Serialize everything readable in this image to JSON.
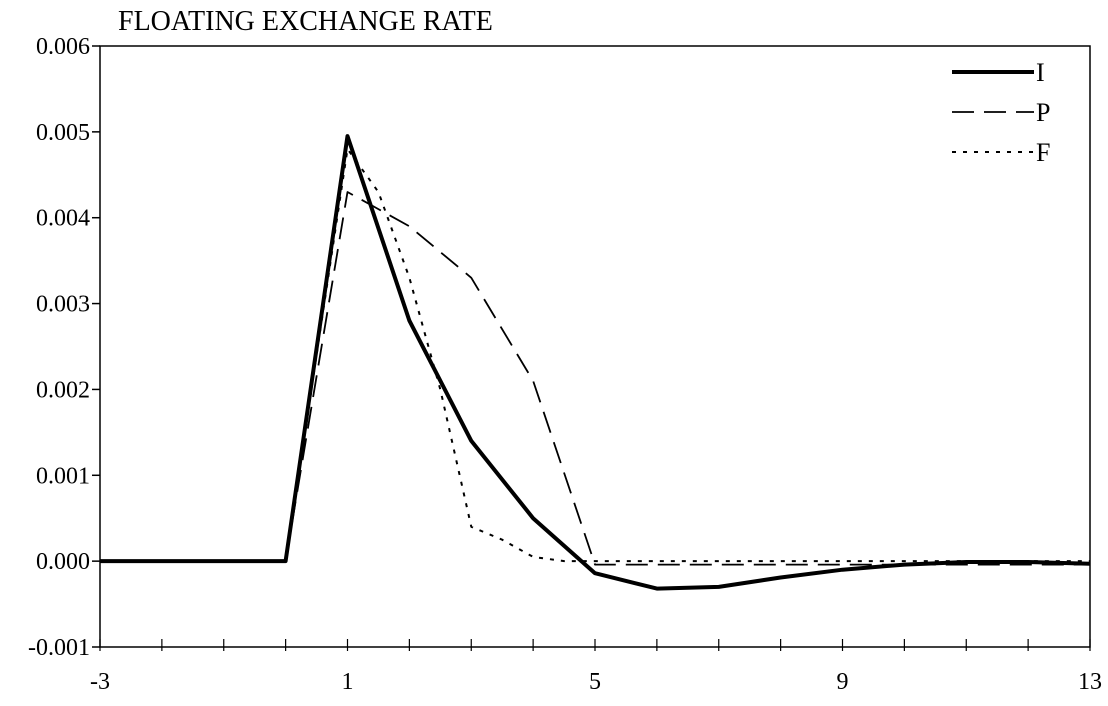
{
  "chart_data": {
    "type": "line",
    "title": "FLOATING EXCHANGE RATE",
    "xlabel": "",
    "ylabel": "",
    "xlim": [
      -3,
      13
    ],
    "ylim": [
      -0.001,
      0.006
    ],
    "x_ticks": [
      -3,
      1,
      5,
      9,
      13
    ],
    "x_minor_ticks": [
      -3,
      -2,
      -1,
      0,
      1,
      2,
      3,
      4,
      5,
      6,
      7,
      8,
      9,
      10,
      11,
      12,
      13
    ],
    "y_ticks": [
      -0.001,
      0.0,
      0.001,
      0.002,
      0.003,
      0.004,
      0.005,
      0.006
    ],
    "x_tick_labels": [
      "-3",
      "1",
      "5",
      "9",
      "13"
    ],
    "y_tick_labels": [
      "-0.001",
      "0.000",
      "0.001",
      "0.002",
      "0.003",
      "0.004",
      "0.005",
      "0.006"
    ],
    "grid": false,
    "legend_position": "top-right",
    "series": [
      {
        "name": "I",
        "style": "solid",
        "color": "#000000",
        "x": [
          -3,
          -2,
          -1,
          0,
          1,
          2,
          3,
          4,
          5,
          6,
          7,
          8,
          9,
          10,
          11,
          12,
          13
        ],
        "values": [
          0,
          0,
          0,
          0,
          0.00495,
          0.0028,
          0.0014,
          0.0005,
          -0.00014,
          -0.00032,
          -0.0003,
          -0.00019,
          -0.0001,
          -4e-05,
          -1e-05,
          -1e-05,
          -3e-05
        ]
      },
      {
        "name": "P",
        "style": "dashed",
        "color": "#000000",
        "x": [
          -3,
          -2,
          -1,
          0,
          1,
          2,
          3,
          4,
          5,
          6,
          7,
          8,
          9,
          10,
          11,
          12,
          13
        ],
        "values": [
          0,
          0,
          0,
          0,
          0.0043,
          0.0039,
          0.0033,
          0.0021,
          -4e-05,
          -4e-05,
          -4e-05,
          -4e-05,
          -4e-05,
          -4e-05,
          -4e-05,
          -4e-05,
          -4e-05
        ]
      },
      {
        "name": "F",
        "style": "dotted",
        "color": "#000000",
        "x": [
          -3,
          -2,
          -1,
          0,
          1,
          1.5,
          2,
          2.5,
          3,
          3.5,
          4,
          4.5,
          5,
          6,
          7,
          8,
          9,
          10,
          11,
          12,
          13
        ],
        "values": [
          0,
          0,
          0,
          0,
          0.0048,
          0.0043,
          0.0033,
          0.002,
          0.0004,
          0.00025,
          5e-05,
          0.0,
          0.0,
          0.0,
          0.0,
          0.0,
          0.0,
          0.0,
          0.0,
          0.0,
          0.0
        ]
      }
    ]
  }
}
